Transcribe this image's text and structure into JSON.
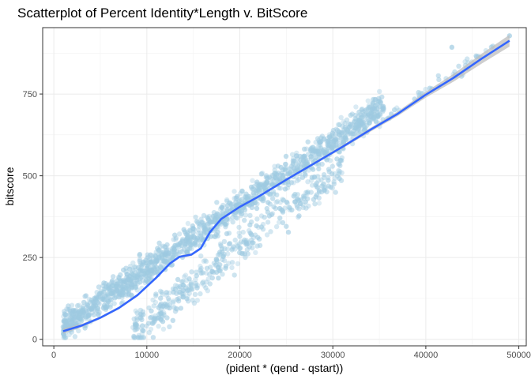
{
  "chart_data": {
    "type": "scatter",
    "title": "Scatterplot of Percent Identity*Length v. BitScore",
    "xlabel": "(pident * (qend - qstart))",
    "ylabel": "bitscore",
    "xlim": [
      -1200,
      50800
    ],
    "ylim": [
      -20,
      953
    ],
    "x_ticks": [
      0,
      10000,
      20000,
      30000,
      40000,
      50000
    ],
    "x_tick_labels": [
      "0",
      "10000",
      "20000",
      "30000",
      "40000",
      "50000"
    ],
    "y_ticks": [
      0,
      250,
      500,
      750
    ],
    "y_tick_labels": [
      "0",
      "250",
      "500",
      "750"
    ],
    "grid": true,
    "theme": "bw",
    "point_color": "#9ecae1",
    "smooth_color": "#3366ff",
    "ribbon_color": "#bdbdbd",
    "point_clusters": [
      {
        "name": "main",
        "x_range": [
          1000,
          35500
        ],
        "slope": 0.0196,
        "intercept": 18,
        "spread": 22,
        "count": 1400
      },
      {
        "name": "lower",
        "x_range": [
          8500,
          31000
        ],
        "slope": 0.0226,
        "intercept": -172,
        "spread": 30,
        "count": 420
      },
      {
        "name": "tail",
        "x_range": [
          35000,
          49200
        ],
        "slope": 0.0188,
        "intercept": 6,
        "spread": 10,
        "count": 45
      }
    ],
    "outliers": [
      {
        "x": 42800,
        "y": 893
      },
      {
        "x": 24300,
        "y": 400
      },
      {
        "x": 49000,
        "y": 928
      }
    ],
    "smooth": [
      {
        "x": 1000,
        "y": 25,
        "se": 8
      },
      {
        "x": 3000,
        "y": 42,
        "se": 5
      },
      {
        "x": 5000,
        "y": 66,
        "se": 4
      },
      {
        "x": 7000,
        "y": 96,
        "se": 4
      },
      {
        "x": 9000,
        "y": 135,
        "se": 4
      },
      {
        "x": 11000,
        "y": 188,
        "se": 4
      },
      {
        "x": 12500,
        "y": 232,
        "se": 4
      },
      {
        "x": 13500,
        "y": 252,
        "se": 4
      },
      {
        "x": 14800,
        "y": 259,
        "se": 4
      },
      {
        "x": 15800,
        "y": 278,
        "se": 4
      },
      {
        "x": 16800,
        "y": 328,
        "se": 4
      },
      {
        "x": 18000,
        "y": 368,
        "se": 4
      },
      {
        "x": 20000,
        "y": 405,
        "se": 4
      },
      {
        "x": 22000,
        "y": 436,
        "se": 4
      },
      {
        "x": 25000,
        "y": 488,
        "se": 4
      },
      {
        "x": 28000,
        "y": 538,
        "se": 4
      },
      {
        "x": 31000,
        "y": 588,
        "se": 5
      },
      {
        "x": 34000,
        "y": 640,
        "se": 6
      },
      {
        "x": 37000,
        "y": 690,
        "se": 7
      },
      {
        "x": 40000,
        "y": 748,
        "se": 9
      },
      {
        "x": 43000,
        "y": 800,
        "se": 12
      },
      {
        "x": 46000,
        "y": 858,
        "se": 15
      },
      {
        "x": 49000,
        "y": 913,
        "se": 18
      }
    ]
  }
}
